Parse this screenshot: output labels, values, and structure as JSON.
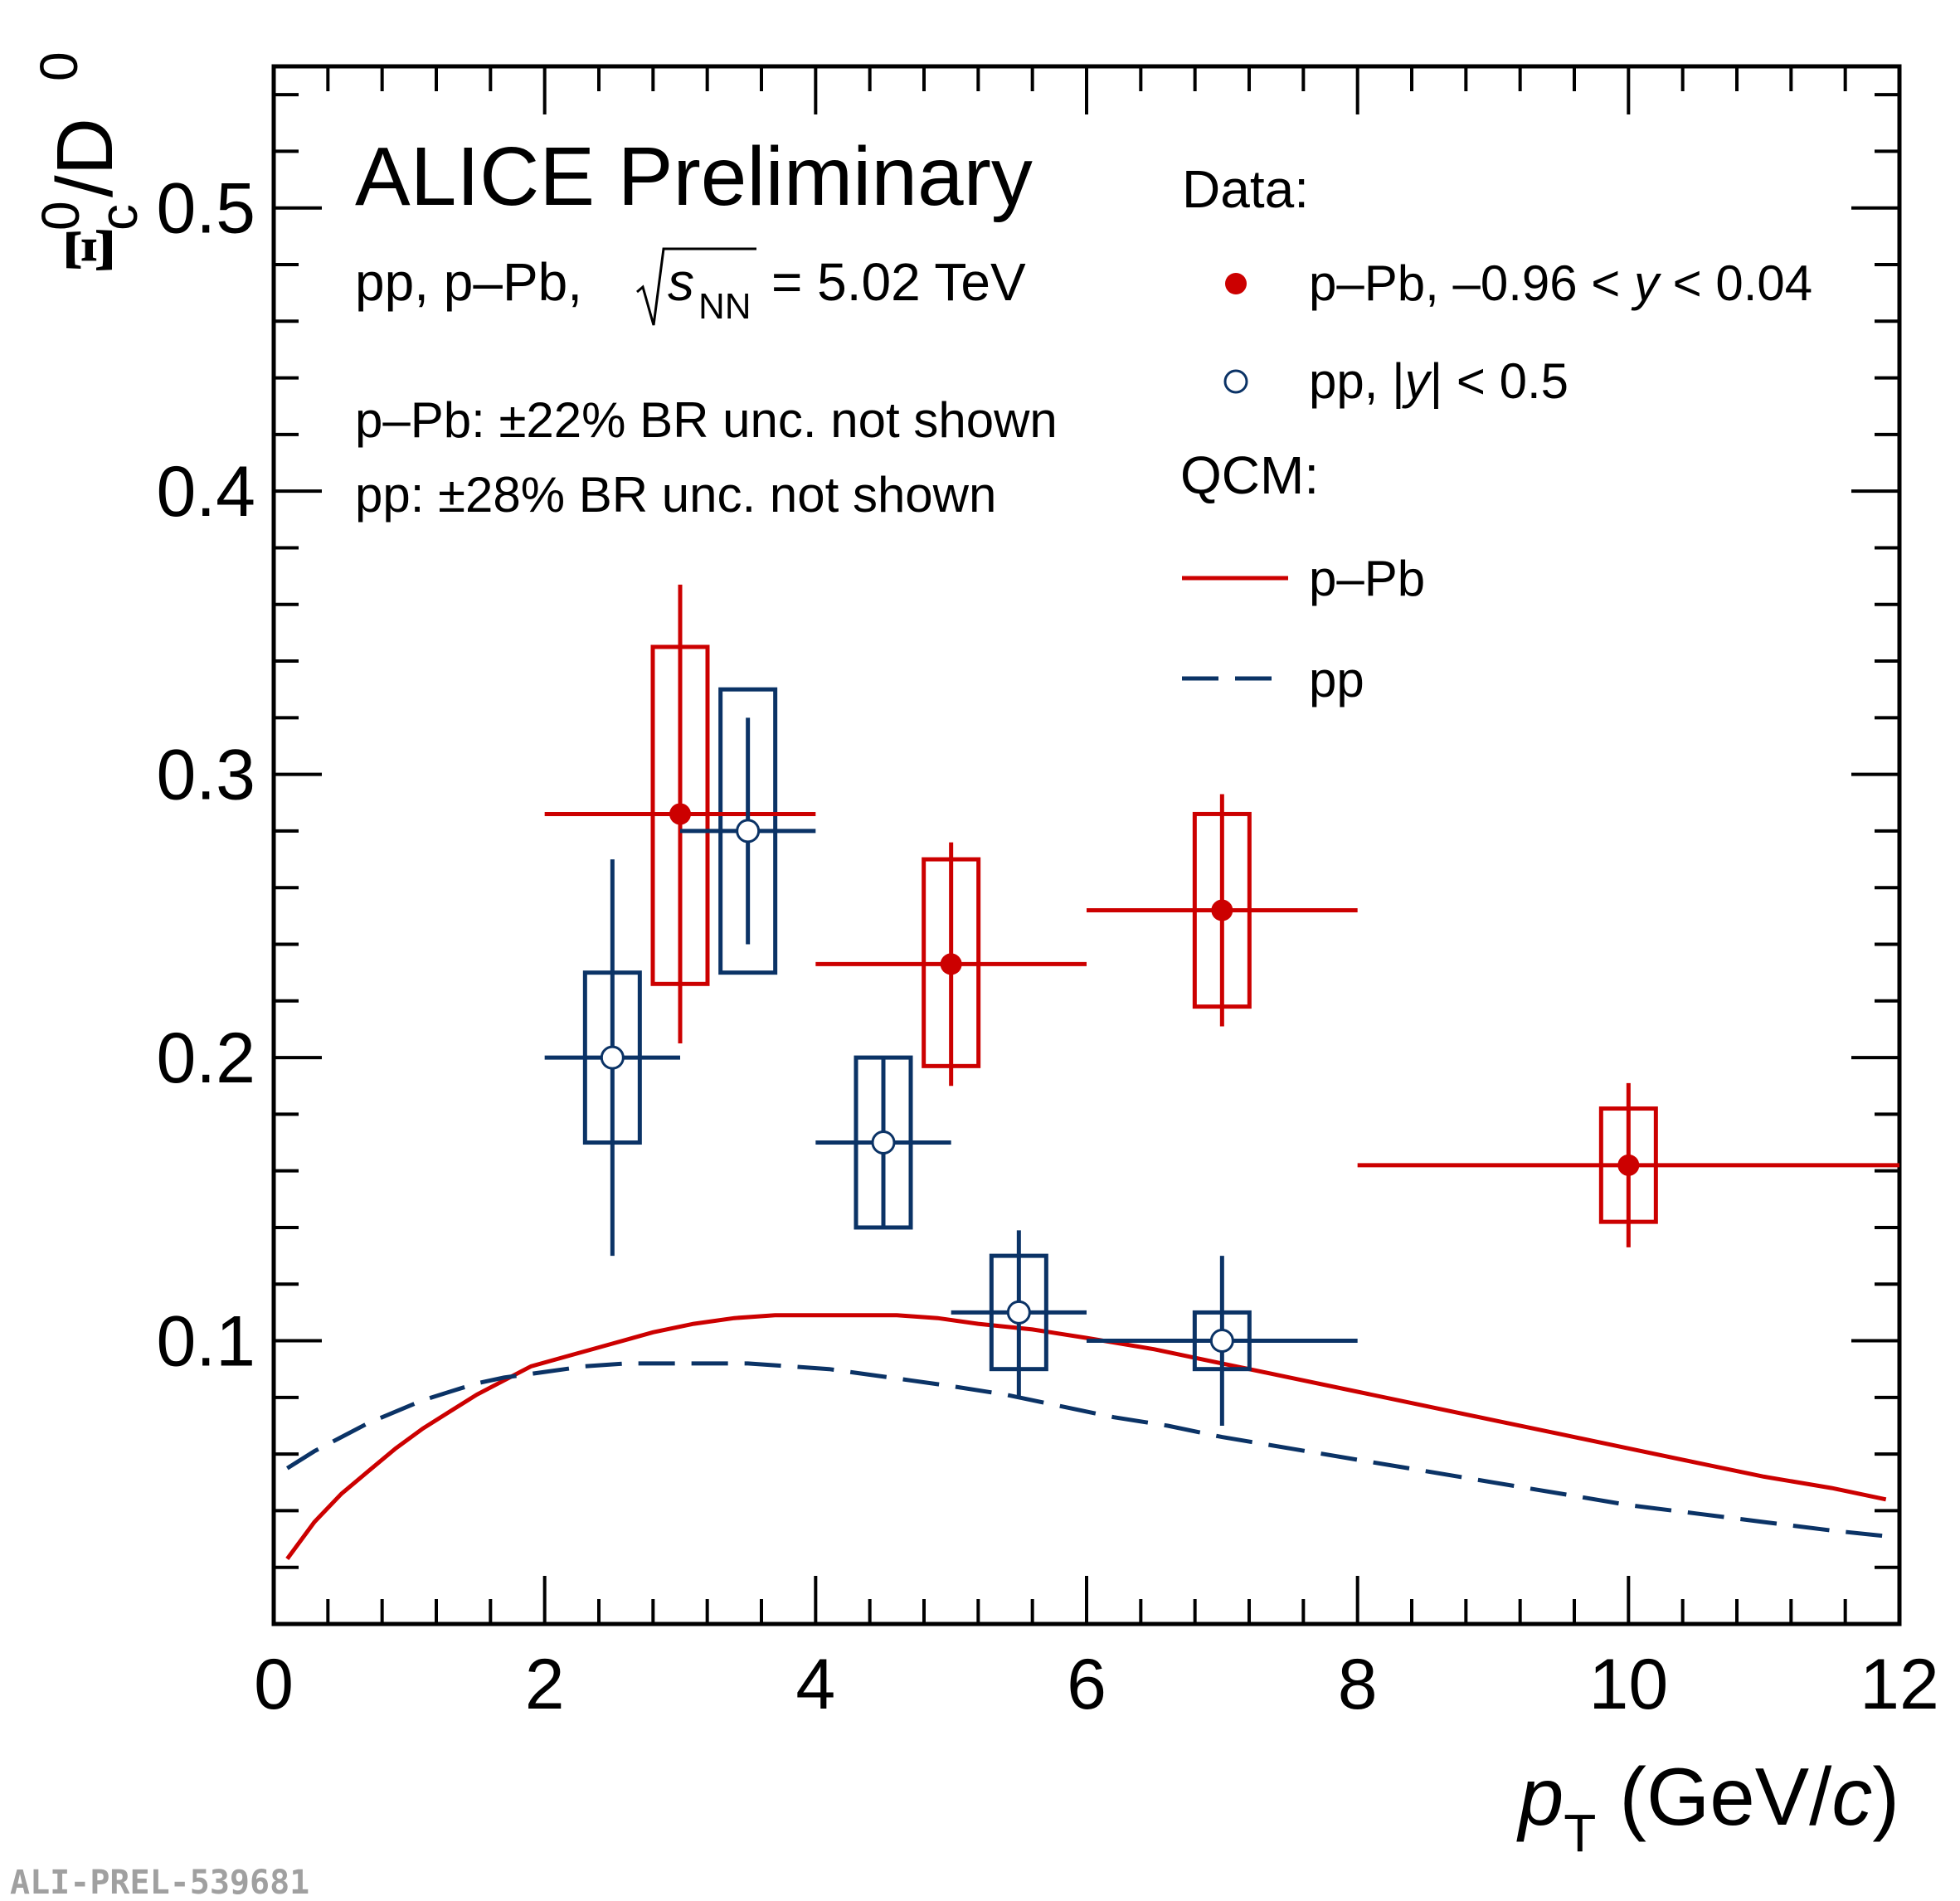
{
  "chart_data": {
    "type": "scatter",
    "title": "ALICE Preliminary",
    "subtitle": "pp, p–Pb, √s_NN = 5.02 TeV",
    "energy_prefix": "pp, p–Pb,",
    "energy_s": "s",
    "energy_sub": "NN",
    "energy_value": "= 5.02 TeV",
    "notes": [
      "p–Pb: ±22% BR unc. not shown",
      "pp: ±28% BR unc. not shown"
    ],
    "xlabel": "p_T (GeV/c)",
    "xlabel_p": "p",
    "xlabel_sub": "T",
    "xlabel_unit_open": "(GeV/",
    "xlabel_unit_c": "c",
    "xlabel_unit_close": ")",
    "ylabel": "Ξ_c^0/D^0",
    "ylabel_xi": "Ξ",
    "ylabel_c": "c",
    "ylabel_zero": "0",
    "ylabel_d": "/D",
    "xlim": [
      0,
      12
    ],
    "ylim": [
      0,
      0.55
    ],
    "x_ticks": [
      0,
      2,
      4,
      6,
      8,
      10,
      12
    ],
    "x_tick_labels": [
      "0",
      "2",
      "4",
      "6",
      "8",
      "10",
      "12"
    ],
    "y_ticks": [
      0.1,
      0.2,
      0.3,
      0.4,
      0.5
    ],
    "y_tick_labels": [
      "0.1",
      "0.2",
      "0.3",
      "0.4",
      "0.5"
    ],
    "legend": {
      "data_header": "Data:",
      "model_header": "QCM:",
      "entries": [
        {
          "label_pre": "p–Pb, –0.96 < ",
          "label_var": "y",
          "label_post": " < 0.04",
          "kind": "marker-filled"
        },
        {
          "label_pre": "pp, |",
          "label_var": "y",
          "label_post": "| < 0.5",
          "kind": "marker-open"
        },
        {
          "label_pre": "p–Pb",
          "label_var": "",
          "label_post": "",
          "kind": "line-solid"
        },
        {
          "label_pre": "pp",
          "label_var": "",
          "label_post": "",
          "kind": "line-dashed"
        }
      ]
    },
    "colors": {
      "ppb": "#cc0000",
      "pp": "#0b3366",
      "axis": "#000000",
      "watermark": "#a0a0a0"
    },
    "series": [
      {
        "name": "p–Pb, –0.96 < y < 0.04",
        "style": "filled",
        "points": [
          {
            "x": 3.0,
            "xlow": 2.0,
            "xhigh": 4.0,
            "y": 0.286,
            "stat_low": 0.205,
            "stat_high": 0.367,
            "syst_low": 0.226,
            "syst_high": 0.345
          },
          {
            "x": 5.0,
            "xlow": 4.0,
            "xhigh": 6.0,
            "y": 0.233,
            "stat_low": 0.19,
            "stat_high": 0.276,
            "syst_low": 0.197,
            "syst_high": 0.27
          },
          {
            "x": 7.0,
            "xlow": 6.0,
            "xhigh": 8.0,
            "y": 0.252,
            "stat_low": 0.211,
            "stat_high": 0.293,
            "syst_low": 0.218,
            "syst_high": 0.286
          },
          {
            "x": 10.0,
            "xlow": 8.0,
            "xhigh": 12.0,
            "y": 0.162,
            "stat_low": 0.133,
            "stat_high": 0.191,
            "syst_low": 0.142,
            "syst_high": 0.182
          }
        ]
      },
      {
        "name": "pp, |y| < 0.5",
        "style": "open",
        "points": [
          {
            "x": 2.5,
            "xlow": 2.0,
            "xhigh": 3.0,
            "y": 0.2,
            "stat_low": 0.13,
            "stat_high": 0.27,
            "syst_low": 0.17,
            "syst_high": 0.23
          },
          {
            "x": 3.5,
            "xlow": 3.0,
            "xhigh": 4.0,
            "y": 0.28,
            "stat_low": 0.24,
            "stat_high": 0.32,
            "syst_low": 0.23,
            "syst_high": 0.33
          },
          {
            "x": 4.5,
            "xlow": 4.0,
            "xhigh": 5.0,
            "y": 0.17,
            "stat_low": 0.14,
            "stat_high": 0.2,
            "syst_low": 0.14,
            "syst_high": 0.2
          },
          {
            "x": 5.5,
            "xlow": 5.0,
            "xhigh": 6.0,
            "y": 0.11,
            "stat_low": 0.08,
            "stat_high": 0.139,
            "syst_low": 0.09,
            "syst_high": 0.13
          },
          {
            "x": 7.0,
            "xlow": 6.0,
            "xhigh": 8.0,
            "y": 0.1,
            "stat_low": 0.07,
            "stat_high": 0.13,
            "syst_low": 0.09,
            "syst_high": 0.11
          }
        ]
      }
    ],
    "models": [
      {
        "name": "QCM p–Pb",
        "style": "solid",
        "x": [
          0.1,
          0.3,
          0.5,
          0.7,
          0.9,
          1.1,
          1.3,
          1.5,
          1.7,
          1.9,
          2.2,
          2.5,
          2.8,
          3.1,
          3.4,
          3.7,
          4.0,
          4.3,
          4.6,
          4.9,
          5.2,
          5.6,
          6.0,
          6.5,
          7.0,
          7.5,
          8.0,
          8.5,
          9.0,
          9.5,
          10.0,
          10.5,
          11.0,
          11.5,
          11.9
        ],
        "y": [
          0.023,
          0.036,
          0.046,
          0.054,
          0.062,
          0.069,
          0.075,
          0.081,
          0.086,
          0.091,
          0.095,
          0.099,
          0.103,
          0.106,
          0.108,
          0.109,
          0.109,
          0.109,
          0.109,
          0.108,
          0.106,
          0.104,
          0.101,
          0.097,
          0.092,
          0.087,
          0.082,
          0.077,
          0.072,
          0.067,
          0.062,
          0.057,
          0.052,
          0.048,
          0.044
        ]
      },
      {
        "name": "QCM pp",
        "style": "dashed",
        "x": [
          0.1,
          0.3,
          0.5,
          0.7,
          0.9,
          1.1,
          1.3,
          1.5,
          1.7,
          2.0,
          2.3,
          2.6,
          2.9,
          3.2,
          3.5,
          3.8,
          4.1,
          4.4,
          4.7,
          5.0,
          5.4,
          5.8,
          6.2,
          6.6,
          7.0,
          7.5,
          8.0,
          8.5,
          9.0,
          9.5,
          10.0,
          10.5,
          11.0,
          11.5,
          11.9
        ],
        "y": [
          0.055,
          0.061,
          0.066,
          0.071,
          0.075,
          0.079,
          0.082,
          0.085,
          0.087,
          0.089,
          0.091,
          0.092,
          0.092,
          0.092,
          0.092,
          0.091,
          0.09,
          0.088,
          0.086,
          0.084,
          0.081,
          0.077,
          0.073,
          0.07,
          0.066,
          0.062,
          0.058,
          0.054,
          0.05,
          0.046,
          0.042,
          0.039,
          0.036,
          0.033,
          0.031
        ]
      }
    ]
  },
  "watermark": "ALI-PREL-539681"
}
